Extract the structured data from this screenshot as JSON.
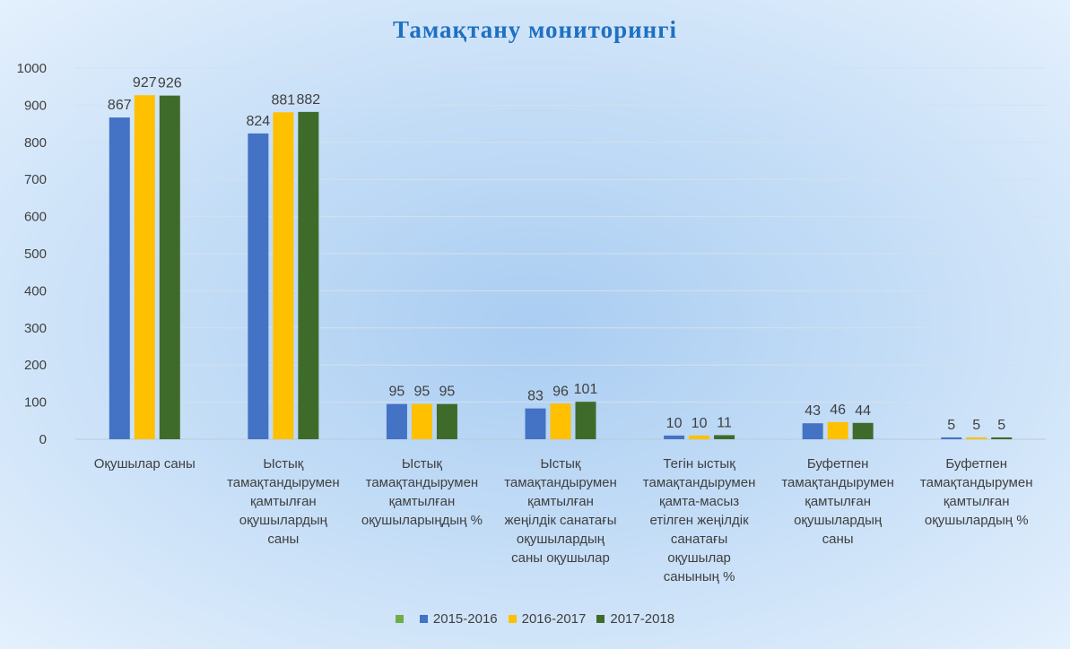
{
  "chart_data": {
    "type": "bar",
    "title": "Тамақтану  мониторингі",
    "xlabel": "",
    "ylabel": "",
    "ylim": [
      0,
      1000
    ],
    "yticks": [
      0,
      100,
      200,
      300,
      400,
      500,
      600,
      700,
      800,
      900,
      1000
    ],
    "grid": true,
    "legend_position": "bottom",
    "categories": [
      [
        "Оқушылар саны"
      ],
      [
        "Ыстық",
        "тамақтандырумен",
        "қамтылған",
        "оқушылардың",
        "саны"
      ],
      [
        "Ыстық",
        "тамақтандырумен",
        "қамтылған",
        "оқушыларыңдың %"
      ],
      [
        "Ыстық",
        "тамақтандырумен",
        "қамтылған",
        "жеңілдік  санатағы",
        "оқушылардың",
        "саны оқушылар"
      ],
      [
        "Тегін  ыстық",
        "тамақтандырумен",
        "қамта-масыз",
        "етілген жеңілдік",
        "санатағы",
        "оқушылар",
        "санының %"
      ],
      [
        "Буфетпен",
        "тамақтандырумен",
        "қамтылған",
        "оқушылардың",
        "саны"
      ],
      [
        "Буфетпен",
        "тамақтандырумен",
        "қамтылған",
        "оқушылардың %"
      ]
    ],
    "series": [
      {
        "name": "2015-2016",
        "color": "#4472c4",
        "values": [
          867,
          824,
          95,
          83,
          10,
          43,
          5
        ]
      },
      {
        "name": "2016-2017",
        "color": "#ffc000",
        "values": [
          927,
          881,
          95,
          96,
          10,
          46,
          5
        ]
      },
      {
        "name": "2017-2018",
        "color": "#3f6b2a",
        "values": [
          926,
          882,
          95,
          101,
          11,
          44,
          5
        ]
      }
    ],
    "legend_extra_marker_color": "#70ad47"
  }
}
